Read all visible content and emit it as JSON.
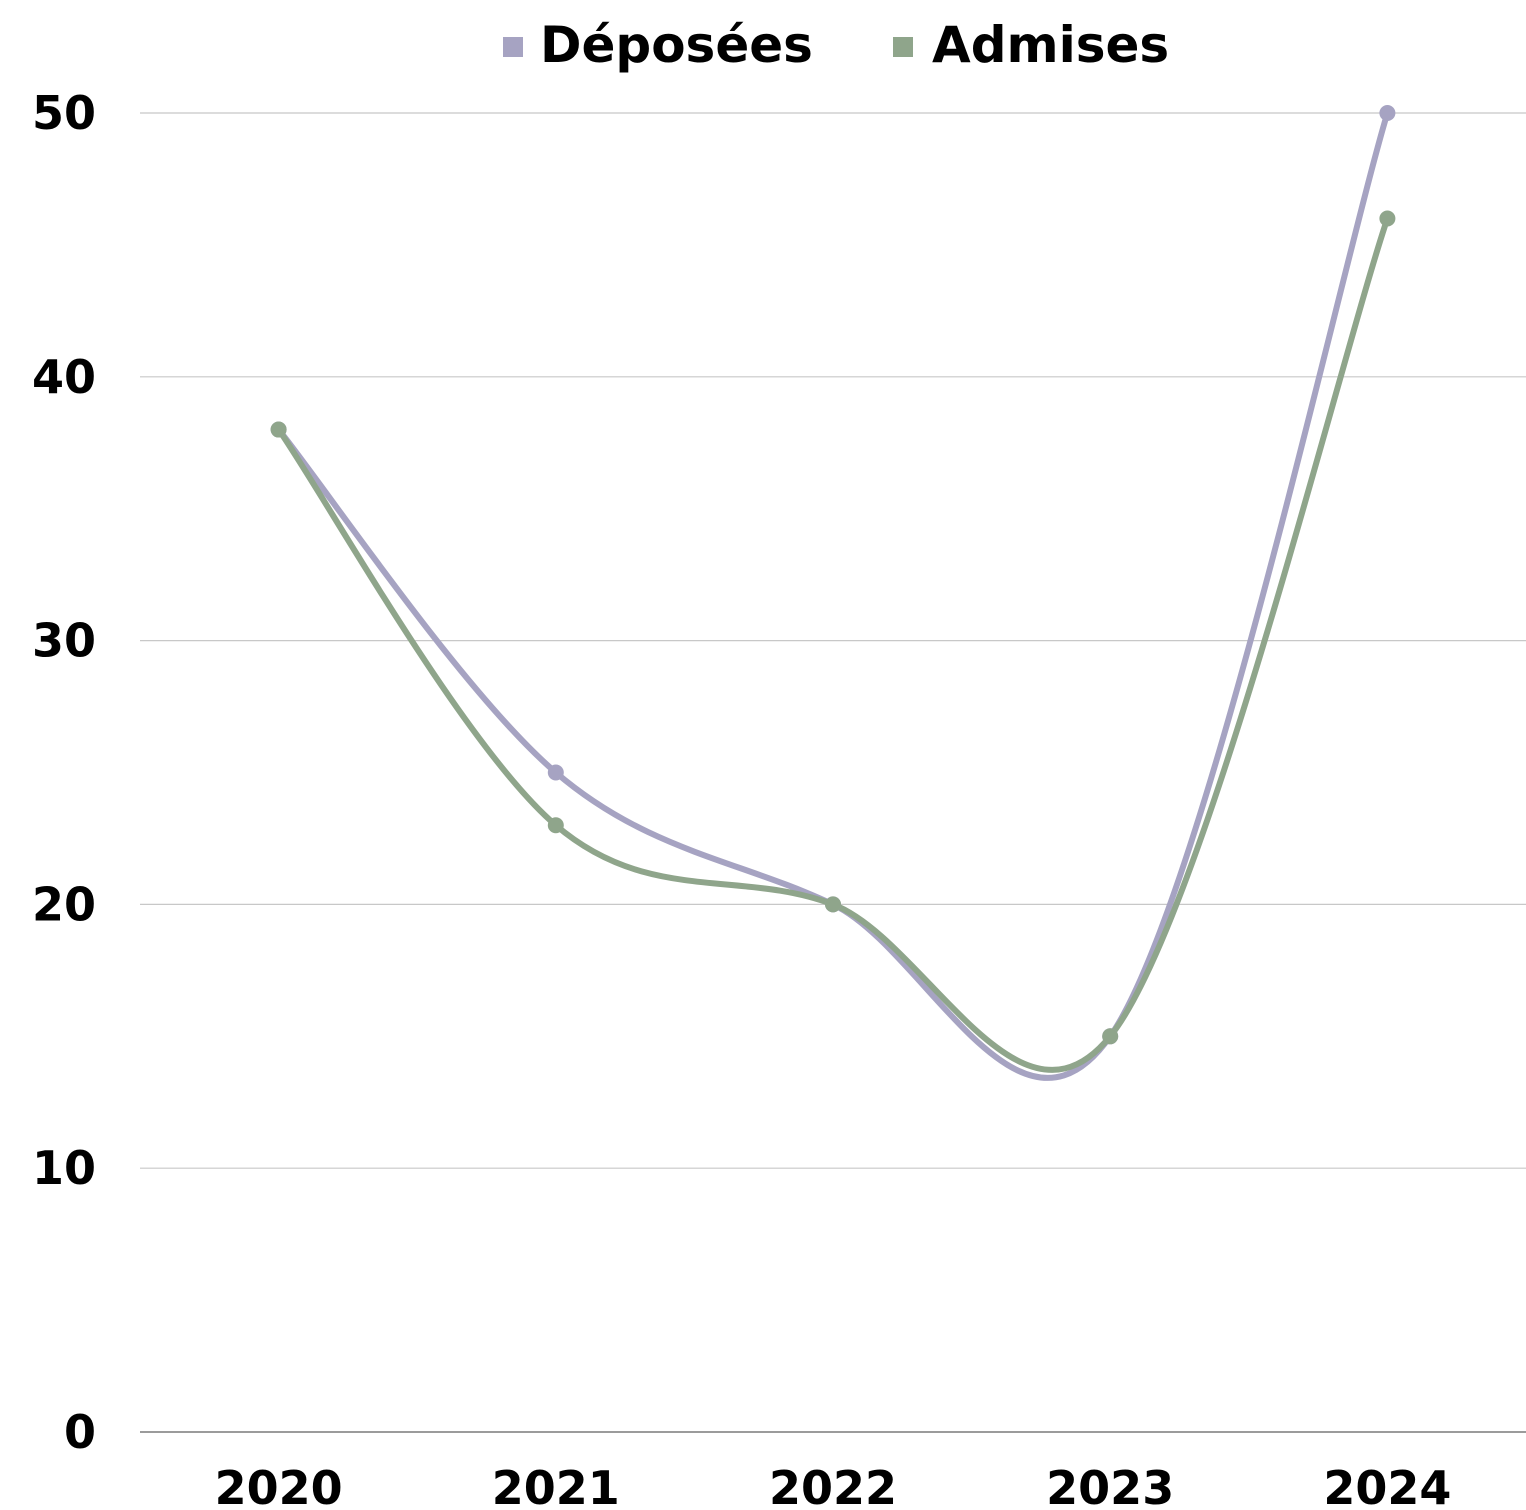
{
  "chart_data": {
    "type": "line",
    "smooth": true,
    "categories": [
      "2020",
      "2021",
      "2022",
      "2023",
      "2024"
    ],
    "series": [
      {
        "name": "Déposées",
        "values": [
          38,
          25,
          20,
          15,
          50
        ],
        "color": "#a6a3c2"
      },
      {
        "name": "Admises",
        "values": [
          38,
          23,
          20,
          15,
          46
        ],
        "color": "#8fa58b"
      }
    ],
    "ylim": [
      0,
      50
    ],
    "yticks": [
      "0",
      "10",
      "20",
      "30",
      "40",
      "50"
    ],
    "ytick_values": [
      0,
      10,
      20,
      30,
      40,
      50
    ],
    "grid": true,
    "legend_position": "top-center",
    "title": "",
    "xlabel": "",
    "ylabel": ""
  }
}
